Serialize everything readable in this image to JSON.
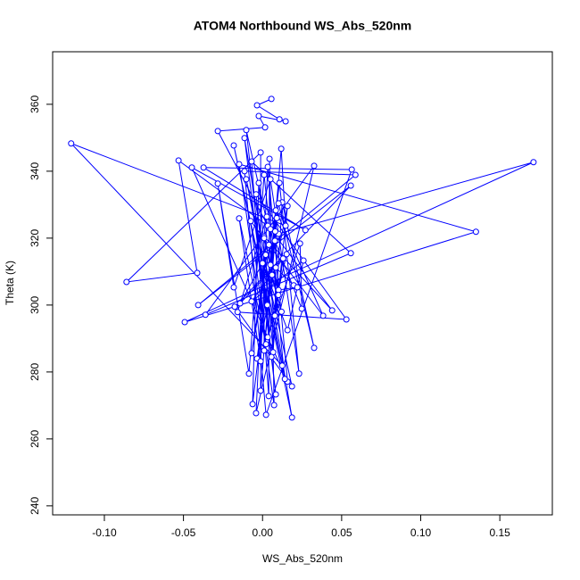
{
  "chart_data": {
    "type": "line",
    "title": "ATOM4 Northbound WS_Abs_520nm",
    "x_label": "WS_Abs_520nm",
    "y_label": "Theta (K)",
    "color": "#0000ff",
    "marker": "open-circle",
    "xlim": [
      -0.1327,
      0.1832
    ],
    "ylim": [
      237.3,
      375.7
    ],
    "xticks": [
      {
        "value": -0.1,
        "label": "-0.10"
      },
      -0.05,
      {
        "value": 0,
        "label": "0.00"
      },
      0.05,
      {
        "value": 0.1,
        "label": "0.10"
      },
      0.15
    ],
    "yticks": [
      240,
      260,
      280,
      300,
      320,
      340,
      360
    ],
    "x": [
      0.0056,
      -0.0035,
      0.0107,
      0.0146,
      -0.0024,
      0.0016,
      -0.0283,
      0.0033,
      -0.0103,
      0.0084,
      -0.0114,
      0.0186,
      -0.0182,
      0.0124,
      -0.121,
      0.0146,
      0.0118,
      -0.0012,
      -0.0012,
      -0.086,
      -0.0413,
      -0.0531,
      0.0101,
      0.1713,
      -0.0492,
      0.1349,
      -0.0148,
      0.0073,
      0.0044,
      0.0039,
      -0.0069,
      0.0558,
      -0.0361,
      0.0326,
      -0.0041,
      0.0033,
      0.0158,
      -0.0447,
      0.0271,
      -0.0373,
      0.0564,
      0.0022,
      -0.0114,
      0.0587,
      -0.0407,
      0.0558,
      -0.0176,
      0.0186,
      -0.0103,
      0.0141,
      0.001,
      -0.0086,
      -0.0283,
      -0.0182,
      0.005,
      0.0231,
      0.0107,
      -0.0063,
      -0.0024,
      0.0067,
      0.0124,
      0.0326,
      0.0101,
      -0.0035,
      0.0158,
      0.0056,
      -0.0041,
      0.053,
      -0.0158,
      0.0027,
      -0.0012,
      -0.0148,
      0.0022,
      -0.0075,
      0.0383,
      0.0084,
      -0.0069,
      0.005,
      0.044,
      0.001,
      0.001,
      0.0078,
      0.0248,
      0.0237,
      0.0033,
      0.0152,
      -0.0142,
      0,
      0.0158,
      0.0259,
      -0.0069,
      0.013,
      0.0078,
      0.0084,
      0.0197,
      0.022,
      0.0101,
      0.004,
      0.01,
      0.008,
      0.003,
      0.002,
      0.012,
      0.006,
      0.009,
      0.005,
      0.001
    ],
    "values": [
      361.6,
      359.7,
      355.5,
      354.9,
      356.5,
      353.1,
      352.0,
      323.7,
      352.3,
      273.3,
      349.9,
      266.4,
      347.7,
      281.9,
      348.3,
      323.7,
      346.7,
      274.4,
      345.6,
      306.9,
      309.6,
      343.2,
      321.3,
      342.7,
      294.9,
      321.9,
      342.1,
      270.1,
      343.7,
      272.8,
      342.9,
      315.5,
      297.1,
      341.6,
      267.7,
      341.3,
      277.1,
      341.1,
      322.4,
      341.1,
      340.5,
      267.2,
      340.0,
      338.9,
      300.0,
      335.7,
      299.5,
      275.7,
      337.6,
      277.9,
      338.9,
      279.5,
      336.3,
      305.3,
      337.6,
      279.5,
      336.5,
      270.4,
      336.5,
      285.9,
      330.7,
      287.2,
      330.4,
      284.0,
      329.6,
      284.5,
      333.1,
      295.7,
      297.9,
      326.4,
      283.2,
      325.9,
      288.3,
      325.1,
      296.8,
      328.3,
      285.6,
      322.7,
      298.4,
      320.5,
      286.4,
      319.2,
      298.9,
      318.4,
      290.4,
      315.2,
      300.5,
      312.5,
      292.5,
      313.3,
      301.1,
      313.9,
      296.8,
      311.2,
      305.9,
      305.3,
      304.5,
      318,
      303,
      322,
      300,
      315,
      298,
      309,
      326,
      312,
      320
    ]
  }
}
